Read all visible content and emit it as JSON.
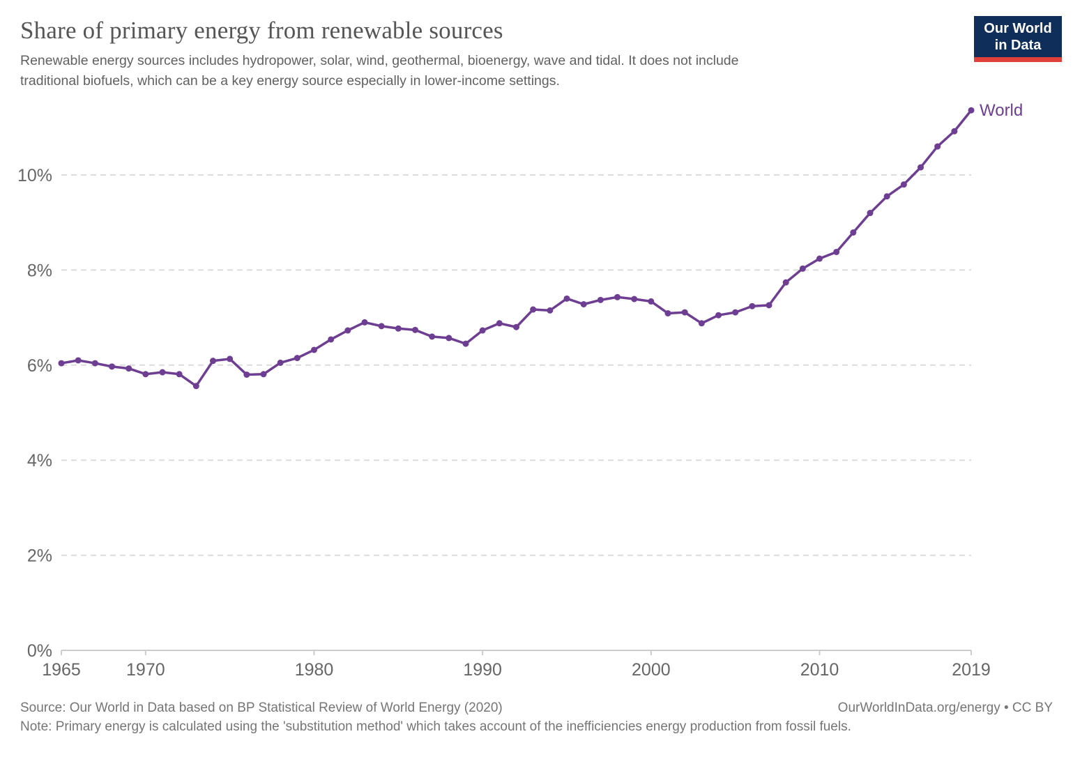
{
  "header": {
    "title": "Share of primary energy from renewable sources",
    "subtitle": "Renewable energy sources includes hydropower, solar, wind, geothermal, bioenergy, wave and tidal. It does not include\ntraditional biofuels, which can be a key energy source especially in lower-income settings.",
    "logo_text": "Our World\nin Data"
  },
  "chart_data": {
    "type": "line",
    "title": "Share of primary energy from renewable sources",
    "xlabel": "",
    "ylabel": "",
    "xlim": [
      1965,
      2019
    ],
    "ylim": [
      0,
      11.63
    ],
    "x_ticks": [
      1965,
      1970,
      1980,
      1990,
      2000,
      2010,
      2019
    ],
    "y_ticks": [
      0,
      2,
      4,
      6,
      8,
      10
    ],
    "y_tick_suffix": "%",
    "grid": "horizontal-dashed",
    "legend": "end-of-line-label",
    "series": [
      {
        "name": "World",
        "color": "#6d3e91",
        "x": [
          1965,
          1966,
          1967,
          1968,
          1969,
          1970,
          1971,
          1972,
          1973,
          1974,
          1975,
          1976,
          1977,
          1978,
          1979,
          1980,
          1981,
          1982,
          1983,
          1984,
          1985,
          1986,
          1987,
          1988,
          1989,
          1990,
          1991,
          1992,
          1993,
          1994,
          1995,
          1996,
          1997,
          1998,
          1999,
          2000,
          2001,
          2002,
          2003,
          2004,
          2005,
          2006,
          2007,
          2008,
          2009,
          2010,
          2011,
          2012,
          2013,
          2014,
          2015,
          2016,
          2017,
          2018,
          2019
        ],
        "values": [
          6.04,
          6.1,
          6.04,
          5.97,
          5.93,
          5.81,
          5.85,
          5.81,
          5.56,
          6.09,
          6.13,
          5.8,
          5.81,
          6.05,
          6.15,
          6.32,
          6.54,
          6.73,
          6.9,
          6.82,
          6.77,
          6.74,
          6.6,
          6.57,
          6.45,
          6.73,
          6.88,
          6.8,
          7.17,
          7.15,
          7.4,
          7.28,
          7.37,
          7.43,
          7.39,
          7.34,
          7.09,
          7.11,
          6.88,
          7.05,
          7.11,
          7.24,
          7.26,
          7.74,
          8.03,
          8.24,
          8.38,
          8.79,
          9.2,
          9.55,
          9.8,
          10.16,
          10.6,
          10.92,
          11.36
        ]
      }
    ]
  },
  "footer": {
    "source": "Source: Our World in Data based on BP Statistical Review of World Energy (2020)",
    "note": "Note: Primary energy is calculated using the 'substitution method' which takes account of the inefficiencies energy production from fossil fuels.",
    "link": "OurWorldInData.org/energy • CC BY"
  },
  "colors": {
    "line": "#6d3e91",
    "series_label": "#6d3e91",
    "grid": "#dcdcdc",
    "axis": "#cccccc",
    "tick_text": "#666666",
    "title_text": "#555555",
    "subtitle_text": "#616161",
    "footer_text": "#757575",
    "logo_bg": "#0f2e5a",
    "logo_red": "#e2403b"
  }
}
